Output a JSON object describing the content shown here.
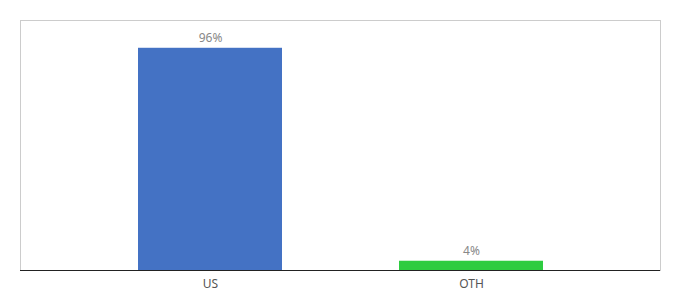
{
  "chart_data": {
    "type": "bar",
    "categories": [
      "US",
      "OTH"
    ],
    "values": [
      96,
      4
    ],
    "value_labels": [
      "96%",
      "4%"
    ],
    "colors": [
      "#4472c4",
      "#2ecc40"
    ],
    "ylim": [
      0,
      108
    ],
    "data_labels": true,
    "tick_labels": "x"
  }
}
